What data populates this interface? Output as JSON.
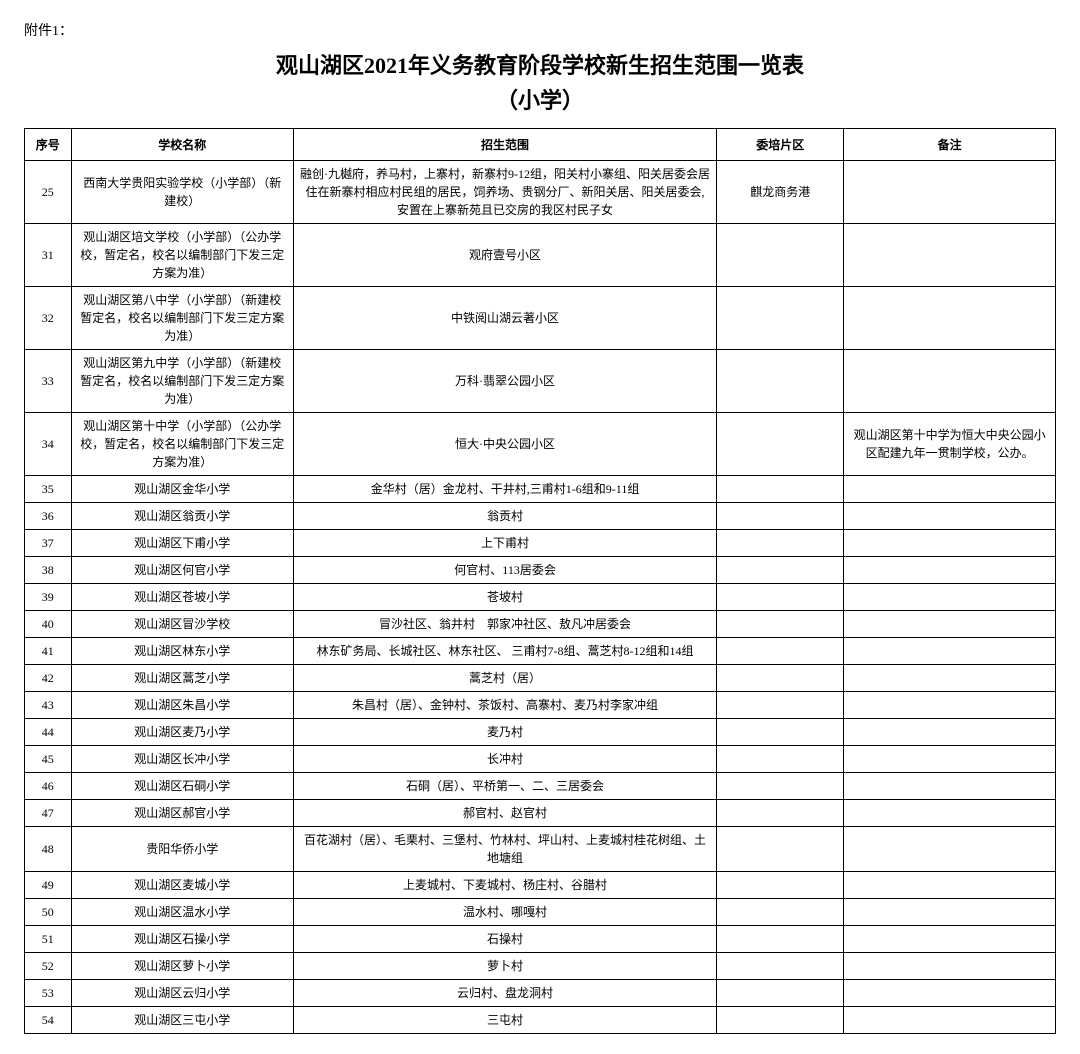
{
  "attachment": "附件1：",
  "title_line1": "观山湖区2021年义务教育阶段学校新生招生范围一览表",
  "title_line2": "（小学）",
  "columns": {
    "idx": "序号",
    "name": "学校名称",
    "range": "招生范围",
    "zone": "委培片区",
    "note": "备注"
  },
  "rows": [
    {
      "idx": "25",
      "name": "西南大学贵阳实验学校（小学部）（新建校）",
      "range": "融创·九樾府，养马村，上寨村，新寨村9-12组，阳关村小寨组、阳关居委会居住在新寨村相应村民组的居民，饲养场、贵钢分厂、新阳关居、阳关居委会,安置在上寨新苑且已交房的我区村民子女",
      "zone": "麒龙商务港",
      "note": ""
    },
    {
      "idx": "31",
      "name": "观山湖区培文学校（小学部）（公办学校，暂定名，校名以编制部门下发三定方案为准）",
      "range": "观府壹号小区",
      "zone": "",
      "note": ""
    },
    {
      "idx": "32",
      "name": "观山湖区第八中学（小学部）（新建校暂定名，校名以编制部门下发三定方案为准）",
      "range": "中铁阅山湖云著小区",
      "zone": "",
      "note": ""
    },
    {
      "idx": "33",
      "name": "观山湖区第九中学（小学部）（新建校暂定名，校名以编制部门下发三定方案为准）",
      "range": "万科·翡翠公园小区",
      "zone": "",
      "note": ""
    },
    {
      "idx": "34",
      "name": "观山湖区第十中学（小学部）（公办学校，暂定名，校名以编制部门下发三定方案为准）",
      "range": "恒大·中央公园小区",
      "zone": "",
      "note": "观山湖区第十中学为恒大中央公园小区配建九年一贯制学校，公办。"
    },
    {
      "idx": "35",
      "name": "观山湖区金华小学",
      "range": "金华村（居）金龙村、干井村,三甫村1-6组和9-11组",
      "zone": "",
      "note": ""
    },
    {
      "idx": "36",
      "name": "观山湖区翁贡小学",
      "range": "翁贡村",
      "zone": "",
      "note": ""
    },
    {
      "idx": "37",
      "name": "观山湖区下甫小学",
      "range": "上下甫村",
      "zone": "",
      "note": ""
    },
    {
      "idx": "38",
      "name": "观山湖区何官小学",
      "range": "何官村、113居委会",
      "zone": "",
      "note": ""
    },
    {
      "idx": "39",
      "name": "观山湖区苍坡小学",
      "range": "苍坡村",
      "zone": "",
      "note": ""
    },
    {
      "idx": "40",
      "name": "观山湖区冒沙学校",
      "range": "冒沙社区、翁井村　郭家冲社区、敖凡冲居委会",
      "zone": "",
      "note": ""
    },
    {
      "idx": "41",
      "name": "观山湖区林东小学",
      "range": "林东矿务局、长城社区、林东社区、\n三甫村7-8组、蒿芝村8-12组和14组",
      "zone": "",
      "note": ""
    },
    {
      "idx": "42",
      "name": "观山湖区蒿芝小学",
      "range": "蒿芝村（居）",
      "zone": "",
      "note": ""
    },
    {
      "idx": "43",
      "name": "观山湖区朱昌小学",
      "range": "朱昌村（居）、金钟村、茶饭村、高寨村、麦乃村李家冲组",
      "zone": "",
      "note": ""
    },
    {
      "idx": "44",
      "name": "观山湖区麦乃小学",
      "range": "麦乃村",
      "zone": "",
      "note": ""
    },
    {
      "idx": "45",
      "name": "观山湖区长冲小学",
      "range": "长冲村",
      "zone": "",
      "note": ""
    },
    {
      "idx": "46",
      "name": "观山湖区石硐小学",
      "range": "石硐（居）、平桥第一、二、三居委会",
      "zone": "",
      "note": ""
    },
    {
      "idx": "47",
      "name": "观山湖区郝官小学",
      "range": "郝官村、赵官村",
      "zone": "",
      "note": ""
    },
    {
      "idx": "48",
      "name": "贵阳华侨小学",
      "range": "百花湖村（居）、毛栗村、三堡村、竹林村、坪山村、上麦城村桂花树组、土地塘组",
      "zone": "",
      "note": ""
    },
    {
      "idx": "49",
      "name": "观山湖区麦城小学",
      "range": "上麦城村、下麦城村、杨庄村、谷腊村",
      "zone": "",
      "note": ""
    },
    {
      "idx": "50",
      "name": "观山湖区温水小学",
      "range": "温水村、哪嘎村",
      "zone": "",
      "note": ""
    },
    {
      "idx": "51",
      "name": "观山湖区石操小学",
      "range": "石操村",
      "zone": "",
      "note": ""
    },
    {
      "idx": "52",
      "name": "观山湖区萝卜小学",
      "range": "萝卜村",
      "zone": "",
      "note": ""
    },
    {
      "idx": "53",
      "name": "观山湖区云归小学",
      "range": "云归村、盘龙洞村",
      "zone": "",
      "note": ""
    },
    {
      "idx": "54",
      "name": "观山湖区三屯小学",
      "range": "三屯村",
      "zone": "",
      "note": ""
    }
  ]
}
